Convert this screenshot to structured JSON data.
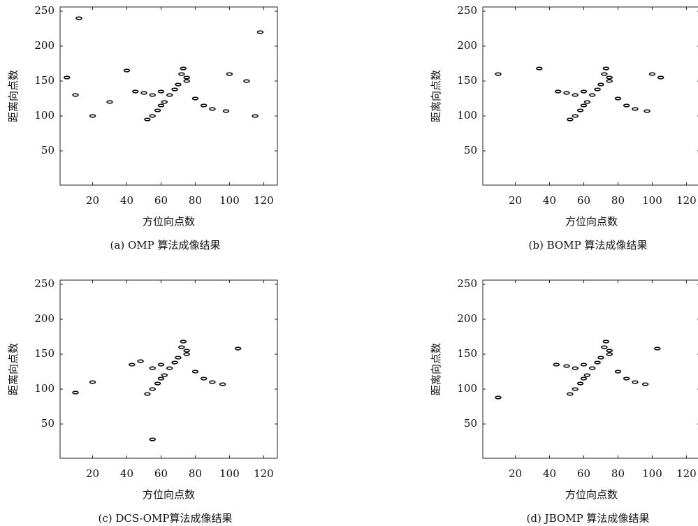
{
  "chart_data": [
    {
      "type": "scatter",
      "caption": "(a) OMP 算法成像结果",
      "xlabel": "方位向点数",
      "ylabel": "距离向点数",
      "xlim": [
        1,
        128
      ],
      "ylim": [
        1,
        256
      ],
      "xticks": [
        20,
        40,
        60,
        80,
        100,
        120
      ],
      "yticks": [
        50,
        100,
        150,
        200,
        250
      ],
      "color": "#000000",
      "x": [
        45,
        50,
        55,
        60,
        65,
        72,
        73,
        75,
        70,
        60,
        58,
        55,
        52,
        62,
        80,
        85,
        90,
        98,
        75,
        68,
        10,
        20,
        100,
        110,
        5,
        115,
        40,
        118,
        12,
        30
      ],
      "y": [
        135,
        133,
        130,
        135,
        130,
        160,
        168,
        150,
        145,
        115,
        108,
        100,
        95,
        120,
        125,
        115,
        110,
        107,
        155,
        138,
        130,
        100,
        160,
        150,
        155,
        100,
        165,
        220,
        240,
        120
      ]
    },
    {
      "type": "scatter",
      "caption": "(b) BOMP 算法成像结果",
      "xlabel": "方位向点数",
      "ylabel": "距离向点数",
      "xlim": [
        1,
        128
      ],
      "ylim": [
        1,
        256
      ],
      "xticks": [
        20,
        40,
        60,
        80,
        100,
        120
      ],
      "yticks": [
        50,
        100,
        150,
        200,
        250
      ],
      "color": "#000000",
      "x": [
        45,
        50,
        55,
        60,
        65,
        72,
        73,
        75,
        70,
        60,
        58,
        55,
        52,
        62,
        80,
        85,
        90,
        97,
        75,
        68,
        10,
        34,
        100,
        105
      ],
      "y": [
        135,
        133,
        130,
        135,
        130,
        160,
        168,
        150,
        145,
        115,
        108,
        100,
        95,
        120,
        125,
        115,
        110,
        107,
        155,
        138,
        160,
        168,
        160,
        155
      ]
    },
    {
      "type": "scatter",
      "caption": "(c) DCS-OMP算法成像结果",
      "xlabel": "方位向点数",
      "ylabel": "距离向点数",
      "xlim": [
        1,
        128
      ],
      "ylim": [
        1,
        256
      ],
      "xticks": [
        20,
        40,
        60,
        80,
        100,
        120
      ],
      "yticks": [
        50,
        100,
        150,
        200,
        250
      ],
      "color": "#000000",
      "x": [
        43,
        48,
        55,
        60,
        65,
        72,
        73,
        75,
        70,
        60,
        58,
        55,
        52,
        62,
        80,
        85,
        90,
        96,
        75,
        68,
        10,
        105,
        55,
        20
      ],
      "y": [
        135,
        140,
        130,
        135,
        130,
        160,
        168,
        150,
        145,
        115,
        108,
        100,
        93,
        120,
        125,
        115,
        110,
        107,
        155,
        138,
        95,
        158,
        28,
        110
      ]
    },
    {
      "type": "scatter",
      "caption": "(d) JBOMP 算法成像结果",
      "xlabel": "方位向点数",
      "ylabel": "距离向点数",
      "xlim": [
        1,
        128
      ],
      "ylim": [
        1,
        256
      ],
      "xticks": [
        20,
        40,
        60,
        80,
        100,
        120
      ],
      "yticks": [
        50,
        100,
        150,
        200,
        250
      ],
      "color": "#000000",
      "x": [
        44,
        50,
        55,
        60,
        65,
        72,
        73,
        75,
        70,
        60,
        58,
        55,
        52,
        62,
        80,
        85,
        90,
        96,
        75,
        68,
        10,
        103
      ],
      "y": [
        135,
        133,
        130,
        135,
        130,
        160,
        168,
        150,
        145,
        115,
        108,
        100,
        93,
        120,
        125,
        115,
        110,
        107,
        155,
        138,
        88,
        158
      ]
    }
  ]
}
